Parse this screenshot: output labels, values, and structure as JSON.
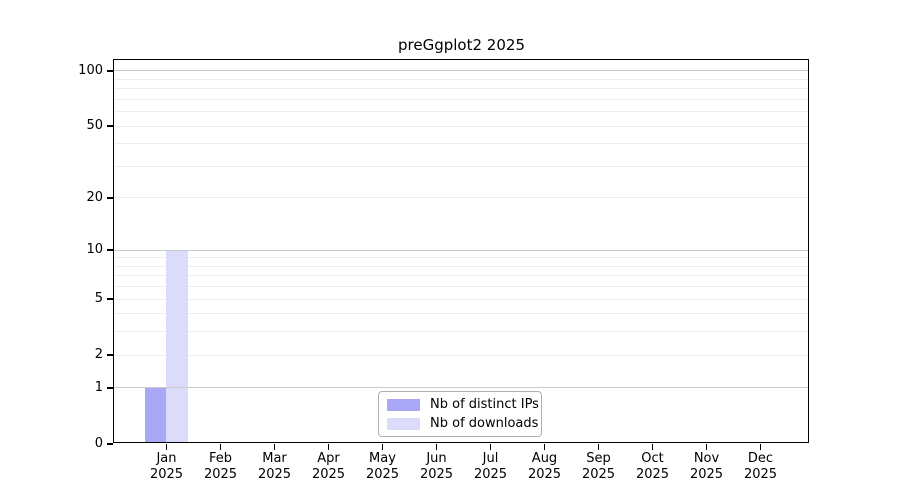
{
  "figure": {
    "background": "#ffffff"
  },
  "chart_data": {
    "type": "bar",
    "title": "preGgplot2 2025",
    "x_axis": {
      "months": [
        "Jan",
        "Feb",
        "Mar",
        "Apr",
        "May",
        "Jun",
        "Jul",
        "Aug",
        "Sep",
        "Oct",
        "Nov",
        "Dec"
      ],
      "year_label": "2025"
    },
    "series": [
      {
        "name": "Nb of distinct IPs",
        "color": "#a8a8f7",
        "values": [
          1,
          0,
          0,
          0,
          0,
          0,
          0,
          0,
          0,
          0,
          0,
          0
        ]
      },
      {
        "name": "Nb of downloads",
        "color": "#dbdbfa",
        "values": [
          10,
          0,
          0,
          0,
          0,
          0,
          0,
          0,
          0,
          0,
          0,
          0
        ]
      }
    ],
    "y_axis": {
      "scale": "log1p",
      "tick_values": [
        0,
        1,
        2,
        5,
        10,
        20,
        50,
        100
      ],
      "major_gridlines": [
        1,
        10,
        100
      ],
      "minor_gridlines": [
        2,
        3,
        4,
        5,
        6,
        7,
        8,
        9,
        20,
        30,
        40,
        50,
        60,
        70,
        80,
        90
      ],
      "ylim": [
        0,
        116
      ]
    },
    "legend": {
      "position": "bottom-center",
      "labels": [
        "Nb of distinct IPs",
        "Nb of downloads"
      ]
    },
    "grid": true
  },
  "colors": {
    "axis": "#000000",
    "major_grid": "#c9c9c9",
    "minor_grid": "#ededed",
    "legend_border": "#b0b0b0",
    "text": "#000000"
  }
}
